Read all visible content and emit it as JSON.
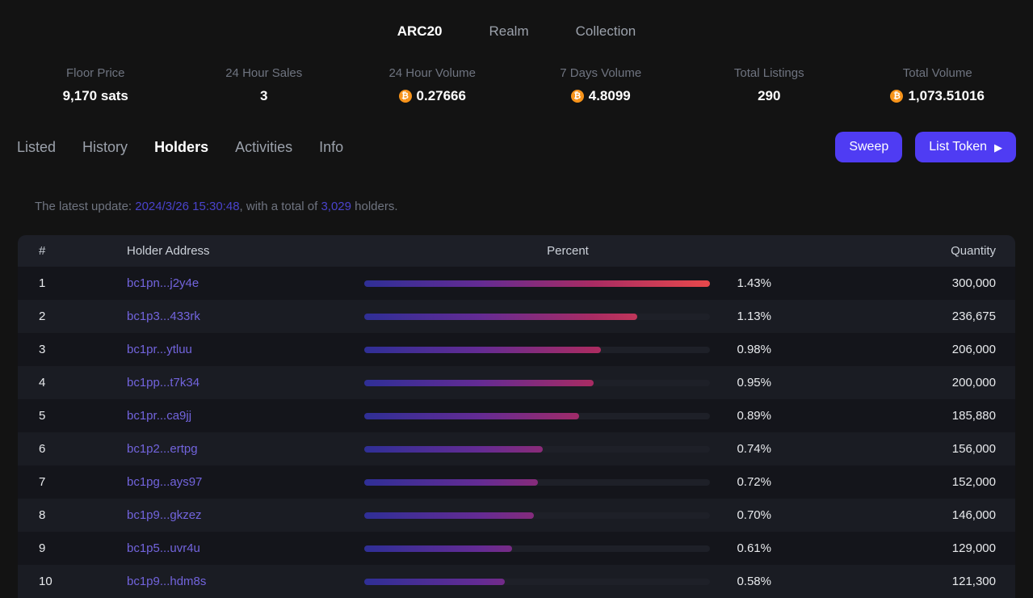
{
  "nav": {
    "items": [
      {
        "label": "ARC20",
        "active": true
      },
      {
        "label": "Realm",
        "active": false
      },
      {
        "label": "Collection",
        "active": false
      }
    ]
  },
  "stats": [
    {
      "label": "Floor Price",
      "value": "9,170 sats",
      "btc": false
    },
    {
      "label": "24 Hour Sales",
      "value": "3",
      "btc": false
    },
    {
      "label": "24 Hour Volume",
      "value": "0.27666",
      "btc": true
    },
    {
      "label": "7 Days Volume",
      "value": "4.8099",
      "btc": true
    },
    {
      "label": "Total Listings",
      "value": "290",
      "btc": false
    },
    {
      "label": "Total Volume",
      "value": "1,073.51016",
      "btc": true
    }
  ],
  "tabs": [
    {
      "label": "Listed",
      "active": false
    },
    {
      "label": "History",
      "active": false
    },
    {
      "label": "Holders",
      "active": true
    },
    {
      "label": "Activities",
      "active": false
    },
    {
      "label": "Info",
      "active": false
    }
  ],
  "actions": {
    "sweep_label": "Sweep",
    "list_token_label": "List Token",
    "play_icon": "▶"
  },
  "update_notice": {
    "prefix": "The latest update: ",
    "datetime": "2024/3/26 15:30:48",
    "middle": ", with a total of ",
    "total": "3,029",
    "suffix": " holders."
  },
  "table": {
    "headers": {
      "rank": "#",
      "address": "Holder Address",
      "percent": "Percent",
      "quantity": "Quantity"
    },
    "rows": [
      {
        "rank": "1",
        "address": "bc1pn...j2y4e",
        "percent": "1.43%",
        "fill_pct": 100.0,
        "quantity": "300,000"
      },
      {
        "rank": "2",
        "address": "bc1p3...433rk",
        "percent": "1.13%",
        "fill_pct": 79.0,
        "quantity": "236,675"
      },
      {
        "rank": "3",
        "address": "bc1pr...ytluu",
        "percent": "0.98%",
        "fill_pct": 68.5,
        "quantity": "206,000"
      },
      {
        "rank": "4",
        "address": "bc1pp...t7k34",
        "percent": "0.95%",
        "fill_pct": 66.4,
        "quantity": "200,000"
      },
      {
        "rank": "5",
        "address": "bc1pr...ca9jj",
        "percent": "0.89%",
        "fill_pct": 62.2,
        "quantity": "185,880"
      },
      {
        "rank": "6",
        "address": "bc1p2...ertpg",
        "percent": "0.74%",
        "fill_pct": 51.7,
        "quantity": "156,000"
      },
      {
        "rank": "7",
        "address": "bc1pg...ays97",
        "percent": "0.72%",
        "fill_pct": 50.3,
        "quantity": "152,000"
      },
      {
        "rank": "8",
        "address": "bc1p9...gkzez",
        "percent": "0.70%",
        "fill_pct": 49.0,
        "quantity": "146,000"
      },
      {
        "rank": "9",
        "address": "bc1p5...uvr4u",
        "percent": "0.61%",
        "fill_pct": 42.7,
        "quantity": "129,000"
      },
      {
        "rank": "10",
        "address": "bc1p9...hdm8s",
        "percent": "0.58%",
        "fill_pct": 40.6,
        "quantity": "121,300"
      }
    ]
  },
  "colors": {
    "accent": "#4f3cf3",
    "btc_orange": "#f7931a",
    "address_link": "#7264dd",
    "bar_gradient_start": "#2f2f96",
    "bar_gradient_end": "#e8484b"
  }
}
